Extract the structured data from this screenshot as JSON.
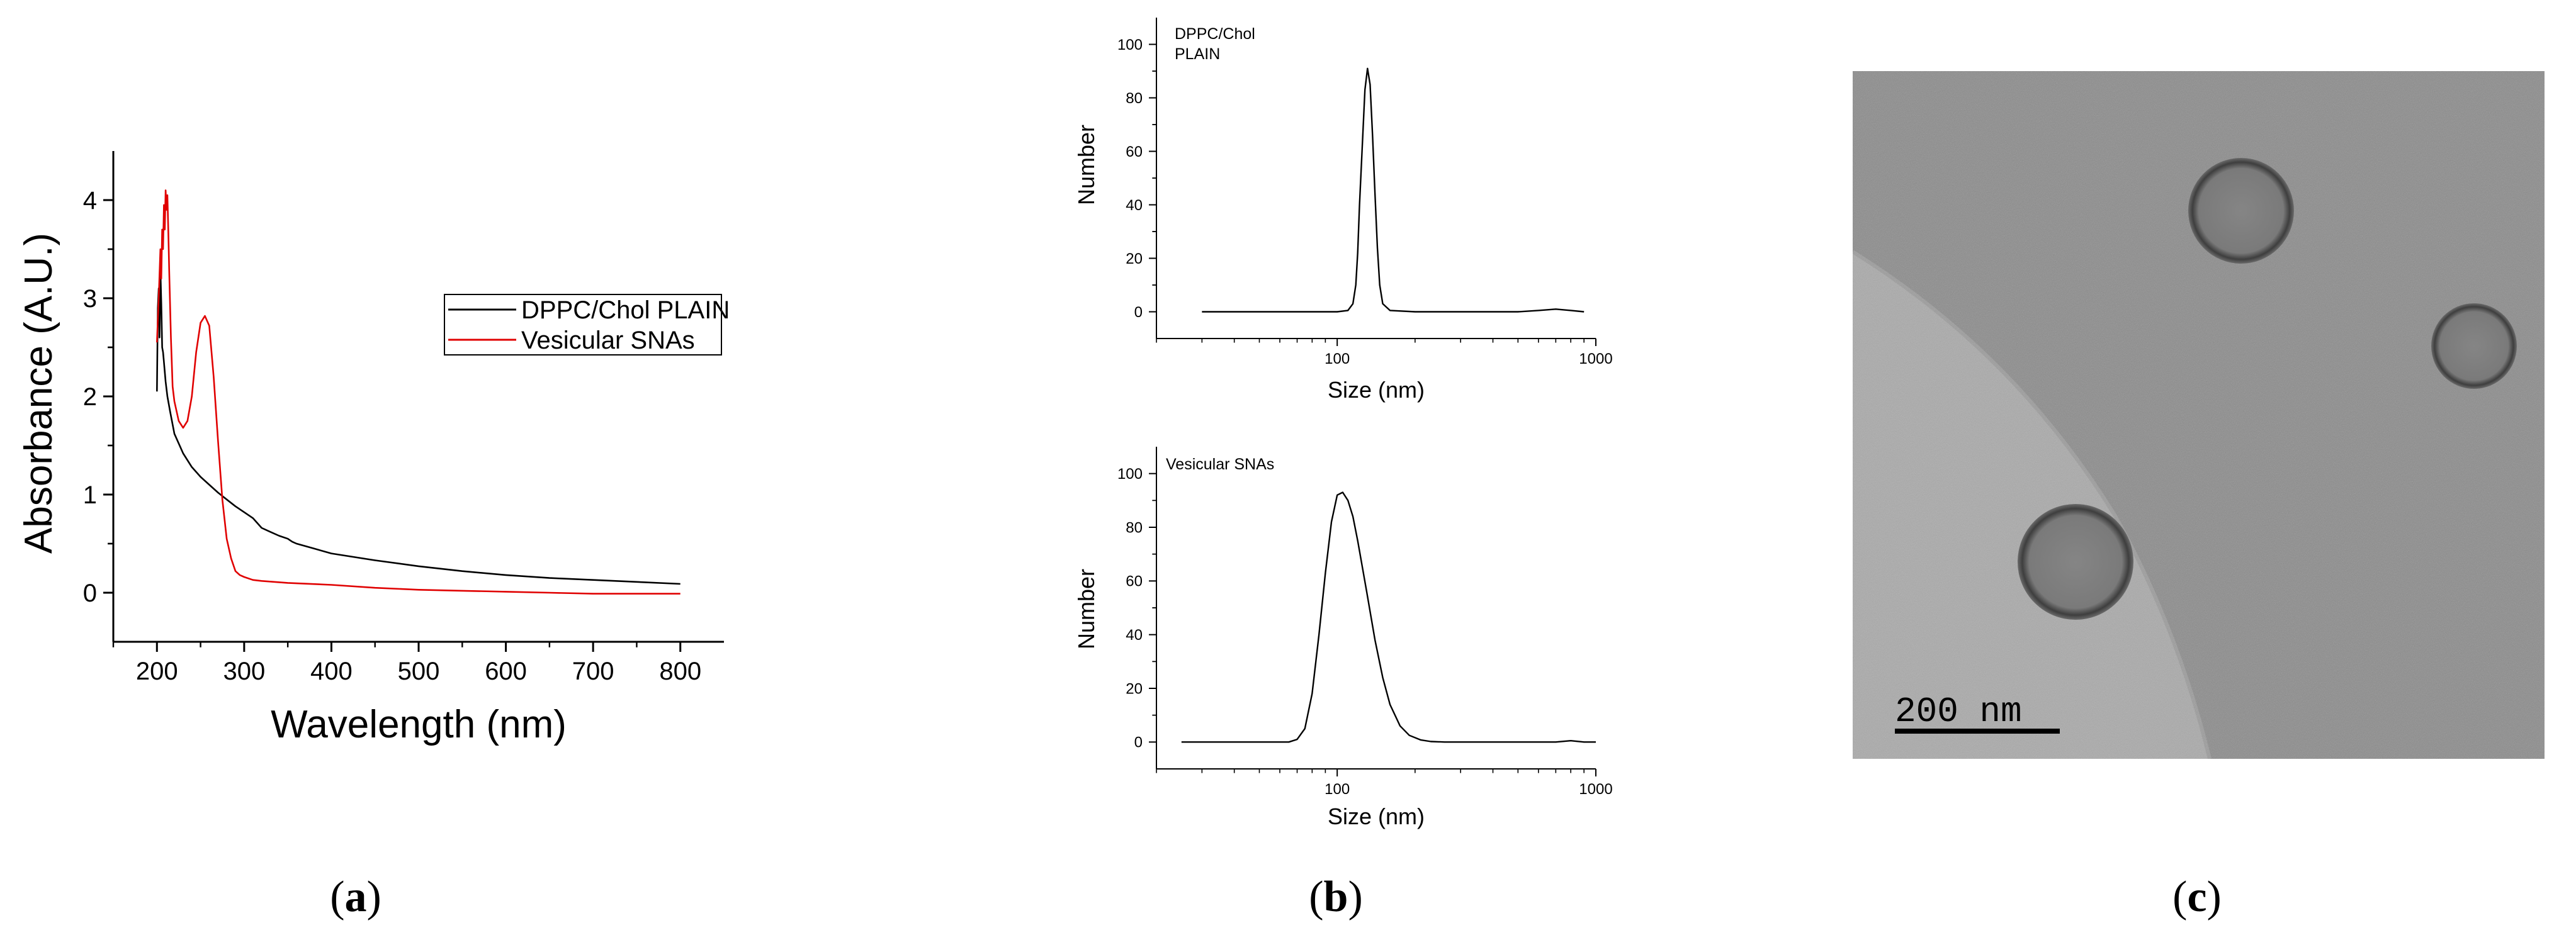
{
  "panel_labels": {
    "a": "a",
    "b": "b",
    "c": "c"
  },
  "colors": {
    "series_plain": "#000000",
    "series_sna": "#e00000"
  },
  "micrograph": {
    "scale_bar_label": "200 nm",
    "background": "#8a8a8a"
  },
  "chart_data": [
    {
      "type": "line",
      "id": "uv-vis",
      "title": "",
      "xlabel": "Wavelength (nm)",
      "ylabel": "Absorbance (A.U.)",
      "xlim": [
        150,
        850
      ],
      "ylim": [
        -0.5,
        4.5
      ],
      "xticks": [
        200,
        300,
        400,
        500,
        600,
        700,
        800
      ],
      "yticks": [
        0,
        1,
        2,
        3,
        4
      ],
      "legend_position": "upper-right",
      "series": [
        {
          "name": "DPPC/Chol PLAIN",
          "color": "#000000",
          "x": [
            200,
            201,
            202,
            203,
            204,
            205,
            206,
            207,
            208,
            210,
            212,
            215,
            220,
            230,
            240,
            250,
            260,
            270,
            280,
            290,
            300,
            310,
            320,
            330,
            340,
            350,
            355,
            360,
            380,
            400,
            450,
            500,
            550,
            600,
            650,
            700,
            750,
            800
          ],
          "y": [
            2.05,
            2.9,
            3.1,
            2.6,
            3.3,
            2.95,
            2.5,
            2.45,
            2.35,
            2.15,
            2.0,
            1.85,
            1.62,
            1.42,
            1.28,
            1.18,
            1.1,
            1.02,
            0.95,
            0.88,
            0.82,
            0.76,
            0.66,
            0.62,
            0.58,
            0.55,
            0.52,
            0.5,
            0.45,
            0.4,
            0.33,
            0.27,
            0.22,
            0.18,
            0.15,
            0.13,
            0.11,
            0.09
          ]
        },
        {
          "name": "Vesicular SNAs",
          "color": "#e00000",
          "x": [
            200,
            202,
            204,
            205,
            206,
            207,
            208,
            209,
            210,
            211,
            212,
            213,
            214,
            216,
            218,
            220,
            225,
            230,
            235,
            240,
            245,
            250,
            255,
            260,
            265,
            270,
            275,
            280,
            285,
            290,
            295,
            300,
            310,
            320,
            350,
            400,
            450,
            500,
            550,
            600,
            650,
            700,
            750,
            800
          ],
          "y": [
            2.55,
            3.0,
            3.5,
            3.2,
            3.7,
            3.5,
            3.95,
            3.7,
            4.1,
            3.9,
            4.05,
            3.7,
            3.3,
            2.6,
            2.1,
            1.95,
            1.75,
            1.68,
            1.75,
            2.0,
            2.45,
            2.75,
            2.82,
            2.72,
            2.2,
            1.55,
            0.95,
            0.55,
            0.35,
            0.22,
            0.18,
            0.16,
            0.13,
            0.12,
            0.1,
            0.08,
            0.05,
            0.03,
            0.02,
            0.01,
            0.0,
            -0.01,
            -0.01,
            -0.01
          ]
        }
      ]
    },
    {
      "type": "line",
      "id": "dls-plain",
      "title": "DPPC/Chol\nPLAIN",
      "title_lines": [
        "DPPC/Chol",
        "PLAIN"
      ],
      "xlabel": "Size (nm)",
      "ylabel": "Number",
      "xscale": "log",
      "xlim": [
        20,
        1000
      ],
      "ylim": [
        -10,
        110
      ],
      "xticks": [
        100,
        1000
      ],
      "yticks": [
        0,
        20,
        40,
        60,
        80,
        100
      ],
      "series": [
        {
          "name": "DPPC/Chol PLAIN",
          "color": "#000000",
          "x": [
            30,
            50,
            80,
            100,
            110,
            115,
            118,
            120,
            122,
            125,
            128,
            131,
            134,
            137,
            140,
            143,
            146,
            150,
            160,
            200,
            300,
            500,
            600,
            700,
            800,
            900
          ],
          "y": [
            0,
            0,
            0,
            0,
            0.5,
            3,
            10,
            22,
            40,
            62,
            83,
            91,
            85,
            66,
            44,
            24,
            10,
            3,
            0.5,
            0,
            0,
            0,
            0.5,
            1,
            0.5,
            0
          ]
        }
      ]
    },
    {
      "type": "line",
      "id": "dls-sna",
      "title": "Vesicular SNAs",
      "xlabel": "Size (nm)",
      "ylabel": "Number",
      "xscale": "log",
      "xlim": [
        20,
        1000
      ],
      "ylim": [
        -10,
        110
      ],
      "xticks": [
        100,
        1000
      ],
      "yticks": [
        0,
        20,
        40,
        60,
        80,
        100
      ],
      "series": [
        {
          "name": "Vesicular SNAs",
          "color": "#000000",
          "x": [
            25,
            50,
            65,
            70,
            75,
            80,
            85,
            90,
            95,
            100,
            105,
            110,
            115,
            120,
            130,
            140,
            150,
            160,
            175,
            190,
            210,
            230,
            260,
            300,
            500,
            700,
            800,
            900,
            1000
          ],
          "y": [
            0,
            0,
            0,
            1,
            5,
            18,
            40,
            63,
            82,
            92,
            93,
            90,
            84,
            75,
            56,
            38,
            24,
            14,
            6,
            2.5,
            0.8,
            0.2,
            0,
            0,
            0,
            0,
            0.5,
            0,
            0
          ]
        }
      ]
    }
  ]
}
